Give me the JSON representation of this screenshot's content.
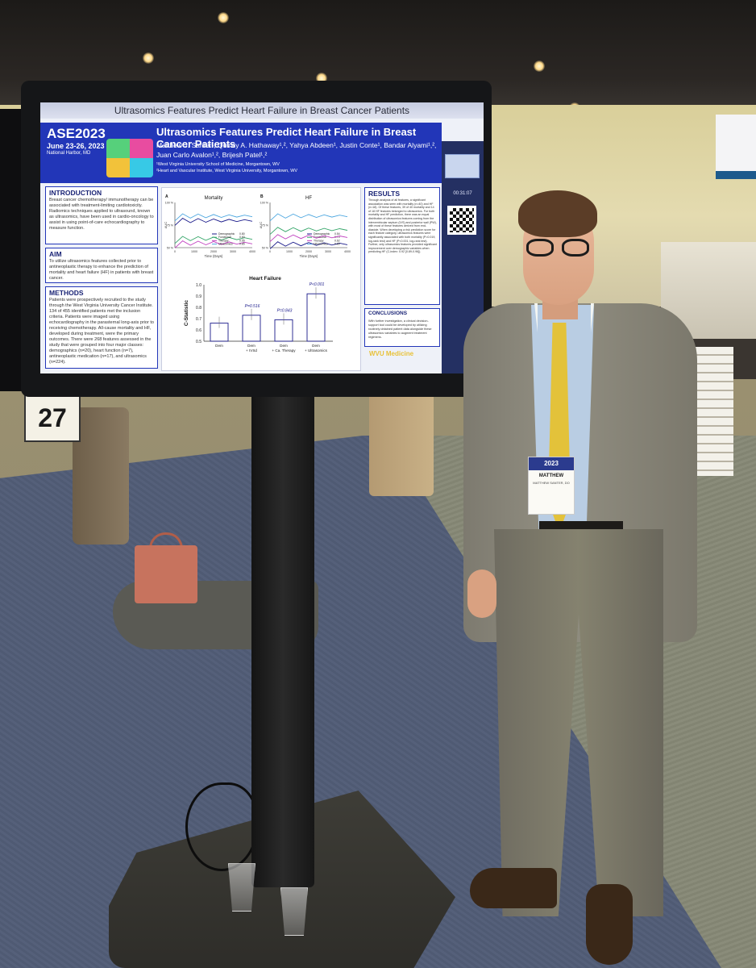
{
  "poster": {
    "header_bar": "Ultrasomics Features Predict Heart Failure in Breast Cancer Patients",
    "conference": "ASE2023",
    "dates": "June 23-26, 2023",
    "location": "National Harbor, MD",
    "title": "Ultrasomics Features Predict Heart Failure in Breast Cancer Patients",
    "authors": "Matthew J. Santer¹, Quincy A. Hathaway¹,², Yahya Abdeen¹, Justin Conte¹, Bandar Alyami¹,², Juan Carlo Avalon¹,², Brijesh Patel¹,²",
    "affiliation_1": "¹West Virginia University School of Medicine, Morgantown, WV",
    "affiliation_2": "²Heart and Vascular Institute, West Virginia University, Morgantown, WV",
    "timer": "00:31:07",
    "institution": "WVU Medicine",
    "intro_heading": "INTRODUCTION",
    "intro_text": "Breast cancer chemotherapy/ immunotherapy can be associated with treatment-limiting cardiotoxicity. Radiomics techniques applied to ultrasound, known as ultrasomics, have been used in cardio-oncology to assist in using point-of-care echocardiography to measure function.",
    "aim_heading": "AIM",
    "aim_text": "To utilize ultrasomics features collected prior to antineoplastic therapy to enhance the prediction of mortality and heart failure (HF) in patients with breast cancer.",
    "methods_heading": "METHODS",
    "methods_text": "Patients were prospectively recruited to the study through the West Virginia University Cancer Institute. 134 of 455 identified patients met the inclusion criteria. Patients were imaged using echocardiography in the parasternal long-axis prior to receiving chemotherapy. All-cause mortality and HF, developed during treatment, were the primary outcomes. There were 268 features assessed in the study that were grouped into four major classes: demographics (n=20), heart function (n=7), antineoplastic medication (n=17), and ultrasomics (n=224).",
    "results_heading": "RESULTS",
    "results_text": "Through analysis of all features, a significant association was seen with mortality (n=40) and HF (n=18). Of these features, 39 of 40 mortality and 14 of 18 HF features belonged to ultrasomics. For both mortality and HF prediction, there was an equal distribution of ultrasomics features coming from the interventricular septum (IVS) and posterior wall (PW), with most of these features derived from end-diastole. When developing a risk prediction score for each feature category, ultrasomics features were significantly associated with both mortality (P=0.019, log-rank test) and HF (P<0.001, log-rank test). Further, only ultrasomics features provided significant improvement over demographic variables when predicting HF (C-index: 0.92 [0.89-0.96]).",
    "conclusions_heading": "CONCLUSIONS",
    "conclusions_text": "With further investigation, a clinical decision-support tool could be developed by utilizing routinely obtained patient data alongside these ultrasomics variables to augment treatment regimens."
  },
  "chart_data": [
    {
      "type": "line",
      "panel": "A",
      "title": "Mortality",
      "xlabel": "Time (Days)",
      "ylabel": "AUC",
      "x_ticks": [
        "0",
        "1000",
        "2000",
        "3000",
        "4000"
      ],
      "y_ticks": [
        "50 %",
        "75 %",
        "100 %"
      ],
      "legend": [
        {
          "name": "Demographic",
          "value": "0.80"
        },
        {
          "name": "Functional",
          "value": "0.60"
        },
        {
          "name": "Therapy",
          "value": "0.55"
        },
        {
          "name": "Ultrasomics",
          "value": "0.85"
        }
      ]
    },
    {
      "type": "line",
      "panel": "B",
      "title": "HF",
      "xlabel": "Time (Days)",
      "ylabel": "AUC",
      "x_ticks": [
        "0",
        "1000",
        "2000",
        "3000",
        "4000"
      ],
      "y_ticks": [
        "50 %",
        "75 %",
        "100 %"
      ],
      "legend": [
        {
          "name": "Demographic",
          "value": "0.54"
        },
        {
          "name": "Functional",
          "value": "0.70"
        },
        {
          "name": "Therapy",
          "value": "0.62"
        },
        {
          "name": "Ultrasomics",
          "value": "0.85"
        }
      ]
    },
    {
      "type": "bar",
      "title": "Heart Failure",
      "ylabel": "C-Statistic",
      "categories": [
        "Dem",
        "Dem + IVSd",
        "Dem + Ca. Therapy",
        "Dem + Ultrasomics"
      ],
      "values": [
        0.66,
        0.73,
        0.69,
        0.92
      ],
      "annotations": [
        "",
        "P=0.516",
        "P=0.843",
        "P<0.001"
      ],
      "ylim": [
        0.5,
        1.0
      ],
      "y_ticks": [
        "0.5",
        "0.6",
        "0.7",
        "0.8",
        "0.9",
        "1.0"
      ]
    }
  ],
  "booth_sign": "27",
  "badge": {
    "year": "2023",
    "first_name": "MATTHEW",
    "full_name": "MATTHEW SANTER, DO"
  },
  "colors": {
    "poster_blue": "#2236b8",
    "tie_yellow": "#e3c23a",
    "jacket_gray": "#8a877a",
    "carpet_blue": "#55607a"
  }
}
